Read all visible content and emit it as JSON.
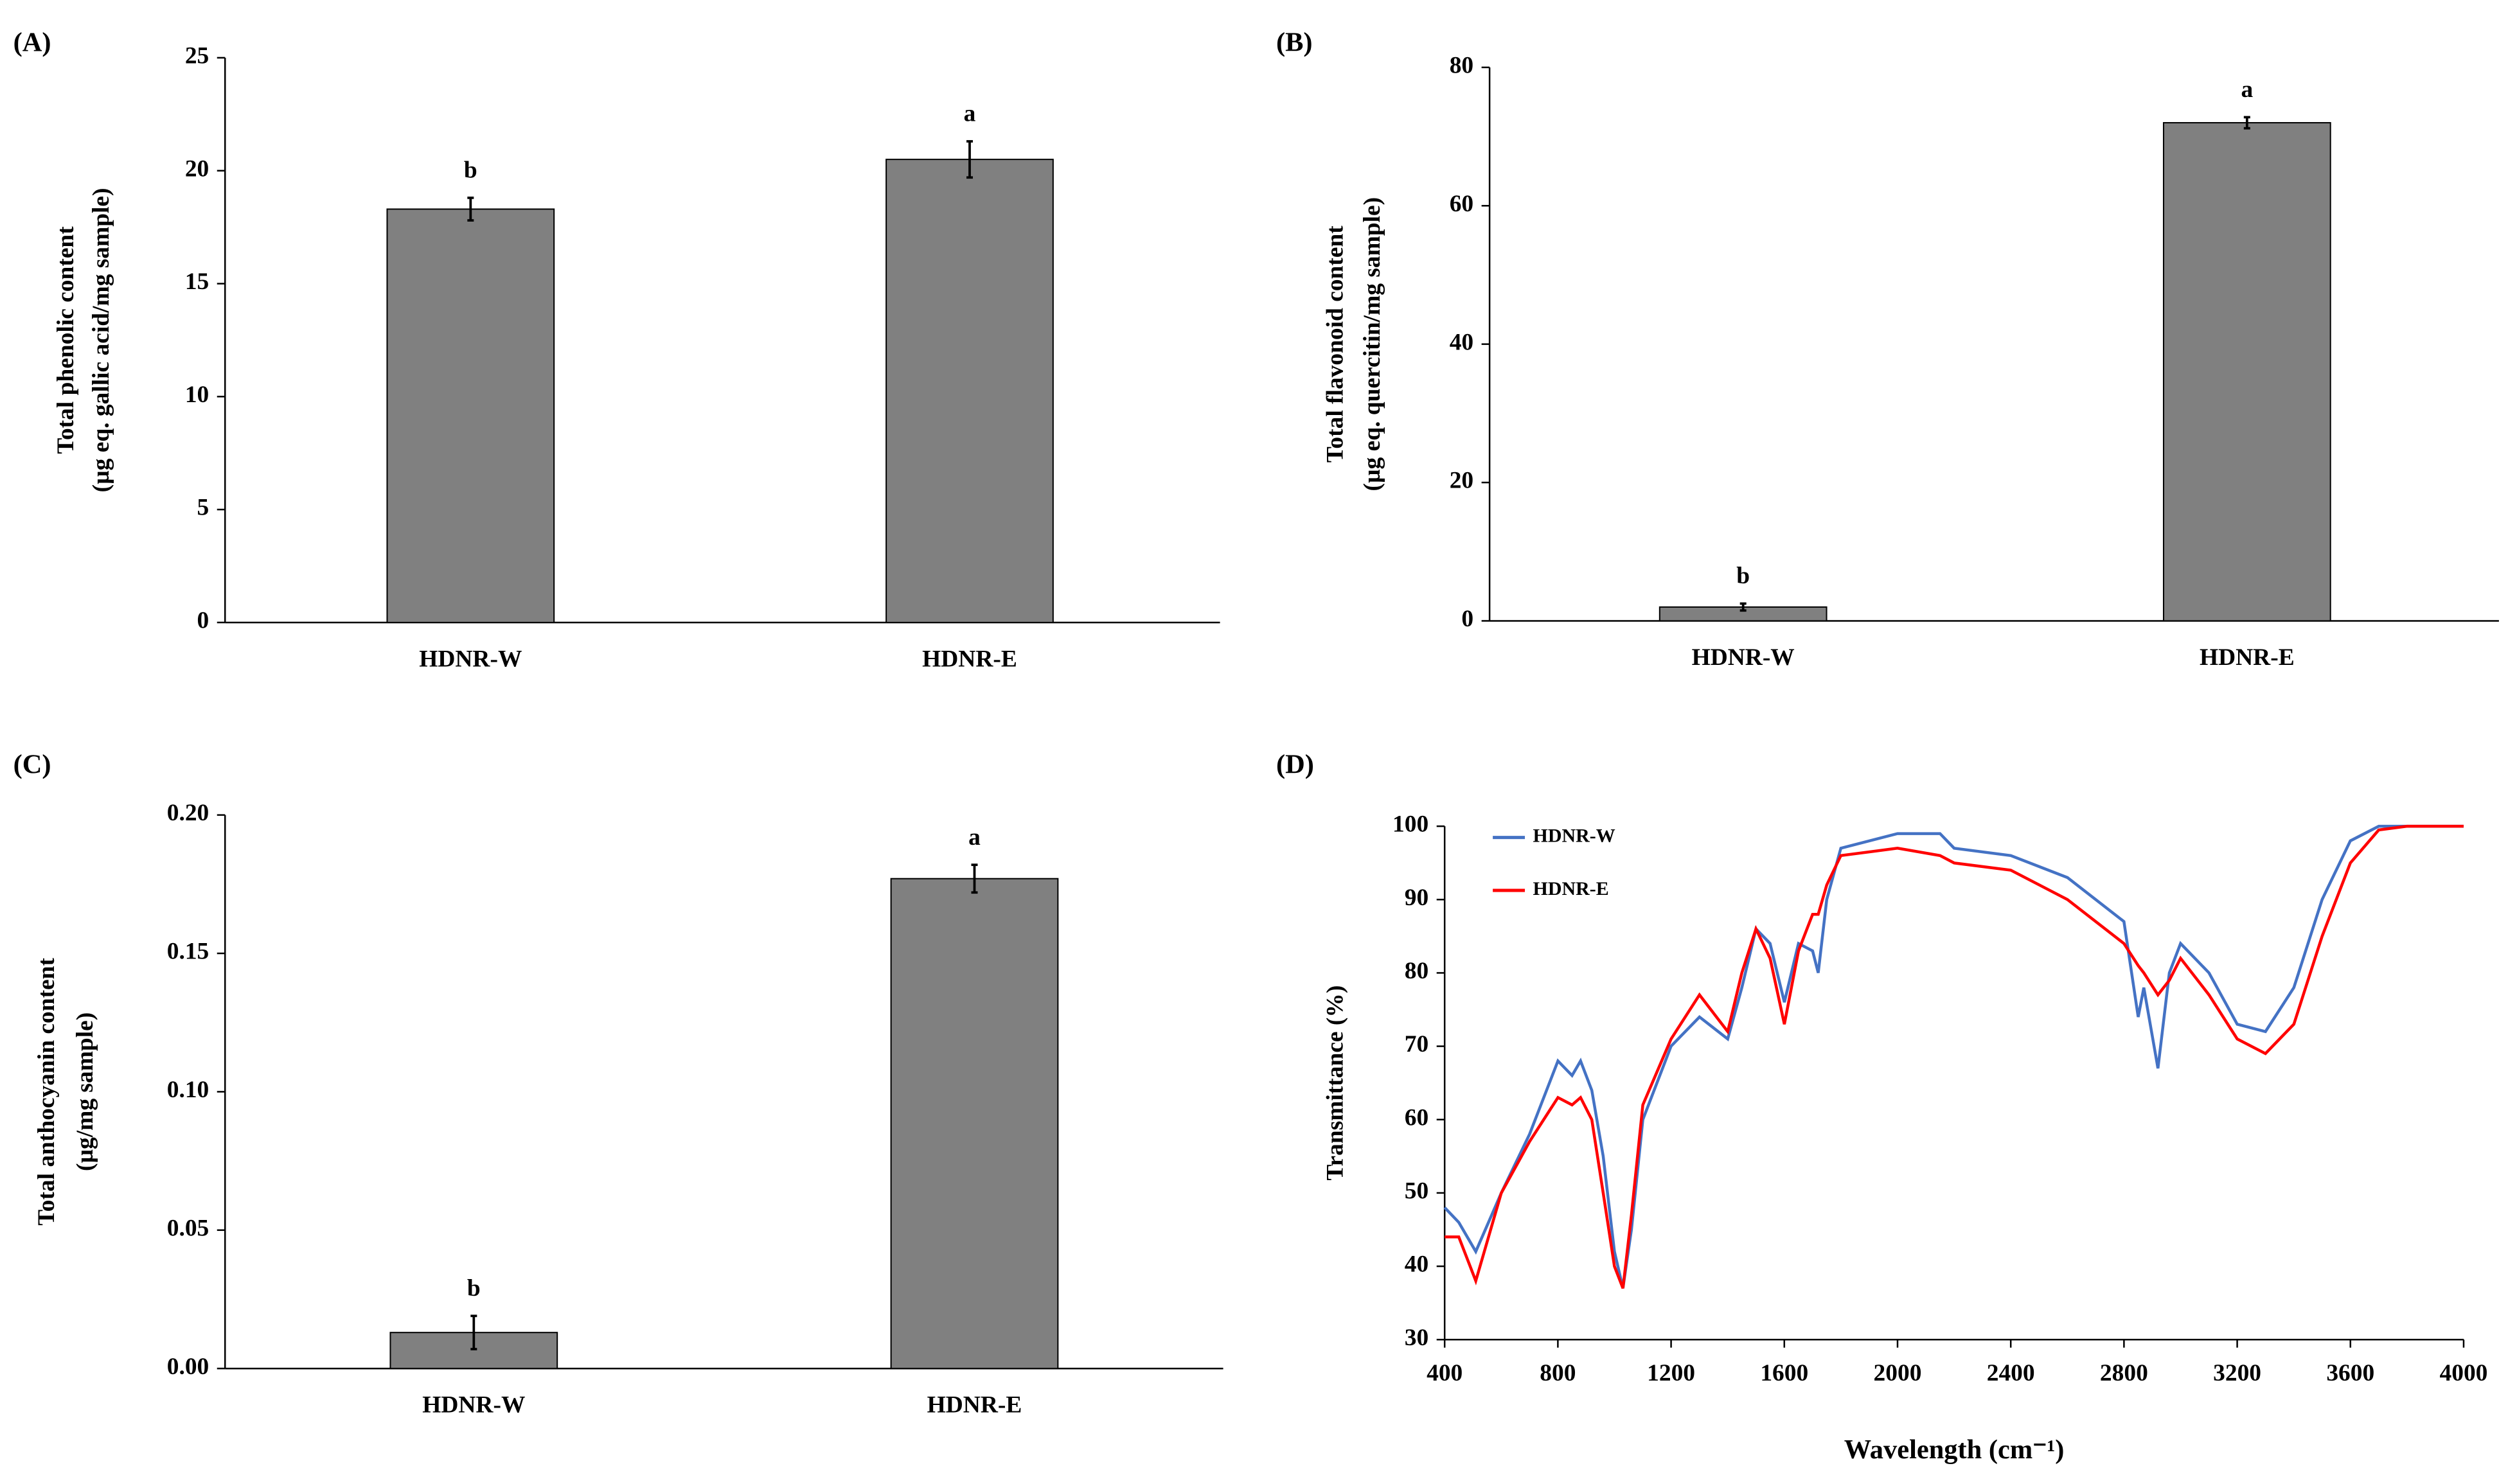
{
  "chart_data": [
    {
      "type": "bar",
      "title": "(A)",
      "ylabel": [
        "Total phenolic content",
        "(µg eq. gallic acid/mg sample)"
      ],
      "categories": [
        "HDNR-W",
        "HDNR-E"
      ],
      "values": [
        18.3,
        20.5
      ],
      "errors": [
        0.5,
        0.8
      ],
      "annotations": [
        "b",
        "a"
      ],
      "color": "#808080",
      "ylim": [
        0,
        25
      ],
      "yticks": [
        0,
        5,
        10,
        15,
        20,
        25
      ]
    },
    {
      "type": "bar",
      "title": "(B)",
      "ylabel": [
        "Total flavonoid content",
        "(µg eq. quercitin/mg sample)"
      ],
      "categories": [
        "HDNR-W",
        "HDNR-E"
      ],
      "values": [
        2,
        72
      ],
      "errors": [
        0.5,
        0.8
      ],
      "annotations": [
        "b",
        "a"
      ],
      "color": "#808080",
      "ylim": [
        0,
        80
      ],
      "yticks": [
        0,
        20,
        40,
        60,
        80
      ]
    },
    {
      "type": "bar",
      "title": "(C)",
      "ylabel": [
        "Total anthocyanin content",
        "(µg/mg sample)"
      ],
      "categories": [
        "HDNR-W",
        "HDNR-E"
      ],
      "values": [
        0.013,
        0.177
      ],
      "errors": [
        0.006,
        0.005
      ],
      "annotations": [
        "b",
        "a"
      ],
      "color": "#808080",
      "ylim": [
        0,
        0.2
      ],
      "yticks": [
        {
          "value": 0,
          "label": "0.00"
        },
        {
          "value": 0.05,
          "label": "0.05"
        },
        {
          "value": 0.1,
          "label": "0.10"
        },
        {
          "value": 0.15,
          "label": "0.15"
        },
        {
          "value": 0.2,
          "label": "0.20"
        }
      ]
    },
    {
      "type": "line",
      "title": "(D)",
      "ylabel": [
        "Transmittance (%)"
      ],
      "xlabel": "Wavelength (cm⁻¹)",
      "x": [
        400,
        450,
        510,
        600,
        700,
        800,
        850,
        880,
        920,
        960,
        1000,
        1030,
        1060,
        1100,
        1200,
        1300,
        1400,
        1450,
        1500,
        1550,
        1600,
        1650,
        1700,
        1720,
        1750,
        1800,
        2000,
        2150,
        2200,
        2400,
        2600,
        2800,
        2850,
        2870,
        2920,
        2960,
        3000,
        3100,
        3200,
        3300,
        3400,
        3500,
        3600,
        3700,
        3800,
        4000
      ],
      "series": [
        {
          "name": "HDNR-W",
          "color": "#4472c4",
          "values": [
            48,
            46,
            42,
            50,
            58,
            68,
            66,
            68,
            64,
            55,
            42,
            37,
            45,
            60,
            70,
            74,
            71,
            78,
            86,
            84,
            76,
            84,
            83,
            80,
            90,
            97,
            99,
            99,
            97,
            96,
            93,
            87,
            74,
            78,
            67,
            80,
            84,
            80,
            73,
            72,
            78,
            90,
            98,
            100,
            100,
            100
          ]
        },
        {
          "name": "HDNR-E",
          "color": "#ff0000",
          "values": [
            44,
            44,
            38,
            50,
            57,
            63,
            62,
            63,
            60,
            50,
            40,
            37,
            47,
            62,
            71,
            77,
            72,
            80,
            86,
            82,
            73,
            83,
            88,
            88,
            92,
            96,
            97,
            96,
            95,
            94,
            90,
            84,
            81,
            80,
            77,
            79,
            82,
            77,
            71,
            69,
            73,
            85,
            95,
            99.5,
            100,
            100
          ]
        }
      ],
      "xlim": [
        400,
        4000
      ],
      "xticks": [
        400,
        800,
        1200,
        1600,
        2000,
        2400,
        2800,
        3200,
        3600,
        4000
      ],
      "ylim": [
        30,
        100
      ],
      "yticks": [
        30,
        40,
        50,
        60,
        70,
        80,
        90,
        100
      ],
      "legend": "upper left"
    }
  ]
}
